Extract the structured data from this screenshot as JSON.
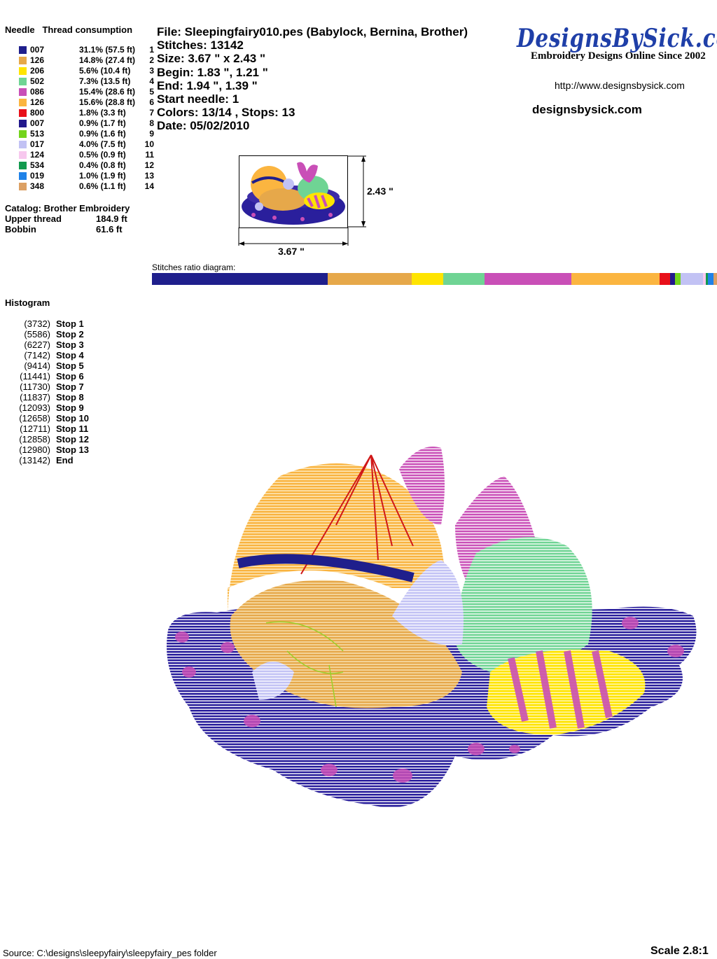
{
  "header": {
    "needle_label": "Needle",
    "thread_label": "Thread consumption"
  },
  "needles": [
    {
      "num": "1",
      "code": "007",
      "consumption": "31.1% (57.5 ft)",
      "color": "#1f1f8c"
    },
    {
      "num": "2",
      "code": "126",
      "consumption": "14.8% (27.4 ft)",
      "color": "#e6a84a"
    },
    {
      "num": "3",
      "code": "206",
      "consumption": "5.6% (10.4 ft)",
      "color": "#ffe400"
    },
    {
      "num": "4",
      "code": "502",
      "consumption": "7.3% (13.5 ft)",
      "color": "#6fd494"
    },
    {
      "num": "5",
      "code": "086",
      "consumption": "15.4% (28.6 ft)",
      "color": "#c94fb7"
    },
    {
      "num": "6",
      "code": "126",
      "consumption": "15.6% (28.8 ft)",
      "color": "#fbb540"
    },
    {
      "num": "7",
      "code": "800",
      "consumption": "1.8% (3.3 ft)",
      "color": "#e8101a"
    },
    {
      "num": "8",
      "code": "007",
      "consumption": "0.9% (1.7 ft)",
      "color": "#22188c"
    },
    {
      "num": "9",
      "code": "513",
      "consumption": "0.9% (1.6 ft)",
      "color": "#73d41c"
    },
    {
      "num": "10",
      "code": "017",
      "consumption": "4.0% (7.5 ft)",
      "color": "#c2c2f4"
    },
    {
      "num": "11",
      "code": "124",
      "consumption": "0.5% (0.9 ft)",
      "color": "#f7c8ee"
    },
    {
      "num": "12",
      "code": "534",
      "consumption": "0.4% (0.8 ft)",
      "color": "#129a4e"
    },
    {
      "num": "13",
      "code": "019",
      "consumption": "1.0% (1.9 ft)",
      "color": "#1f82e8"
    },
    {
      "num": "14",
      "code": "348",
      "consumption": "0.6% (1.1 ft)",
      "color": "#dca064"
    }
  ],
  "catalog": "Catalog: Brother Embroidery",
  "threads": [
    {
      "label": "Upper thread",
      "value": "184.9 ft"
    },
    {
      "label": "Bobbin",
      "value": "61.6 ft"
    }
  ],
  "info": {
    "file": "File: Sleepingfairy010.pes  (Babylock, Bernina, Brother)",
    "stitches": "Stitches: 13142",
    "size": "Size: 3.67 \" x 2.43 \"",
    "begin": "Begin: 1.83 \", 1.21 \"",
    "end": "End: 1.94 \", 1.39 \"",
    "start_needle": "Start needle: 1",
    "colors": "Colors: 13/14 , Stops: 13",
    "date": "Date: 05/02/2010"
  },
  "logo": {
    "text": "DesignsBySick.com",
    "tagline": "Embroidery Designs Online Since 2002",
    "url": "http://www.designsbysick.com",
    "site": "designsbysick.com"
  },
  "preview": {
    "height_label": "2.43 \"",
    "width_label": "3.67 \""
  },
  "ratio": {
    "label": "Stitches ratio diagram:",
    "segments": [
      {
        "pct": 31.1,
        "color": "#1f1f8c"
      },
      {
        "pct": 14.8,
        "color": "#e6a84a"
      },
      {
        "pct": 5.6,
        "color": "#ffe400"
      },
      {
        "pct": 7.3,
        "color": "#6fd494"
      },
      {
        "pct": 15.4,
        "color": "#c94fb7"
      },
      {
        "pct": 15.6,
        "color": "#fbb540"
      },
      {
        "pct": 1.8,
        "color": "#e8101a"
      },
      {
        "pct": 0.9,
        "color": "#22188c"
      },
      {
        "pct": 0.9,
        "color": "#73d41c"
      },
      {
        "pct": 4.0,
        "color": "#c2c2f4"
      },
      {
        "pct": 0.5,
        "color": "#f7c8ee"
      },
      {
        "pct": 0.4,
        "color": "#129a4e"
      },
      {
        "pct": 1.0,
        "color": "#1f82e8"
      },
      {
        "pct": 0.6,
        "color": "#dca064"
      }
    ]
  },
  "histogram": {
    "title": "Histogram",
    "rows": [
      {
        "count": "(3732)",
        "label": "Stop 1"
      },
      {
        "count": "(5586)",
        "label": "Stop 2"
      },
      {
        "count": "(6227)",
        "label": "Stop 3"
      },
      {
        "count": "(7142)",
        "label": "Stop 4"
      },
      {
        "count": "(9414)",
        "label": "Stop 5"
      },
      {
        "count": "(11441)",
        "label": "Stop 6"
      },
      {
        "count": "(11730)",
        "label": "Stop 7"
      },
      {
        "count": "(11837)",
        "label": "Stop 8"
      },
      {
        "count": "(12093)",
        "label": "Stop 9"
      },
      {
        "count": "(12658)",
        "label": "Stop 10"
      },
      {
        "count": "(12711)",
        "label": "Stop 11"
      },
      {
        "count": "(12858)",
        "label": "Stop 12"
      },
      {
        "count": "(12980)",
        "label": "Stop 13"
      },
      {
        "count": "(13142)",
        "label": "End"
      }
    ]
  },
  "footer": {
    "source": "Source: C:\\designs\\sleepyfairy\\sleepyfairy_pes folder",
    "scale": "Scale 2.8:1"
  }
}
